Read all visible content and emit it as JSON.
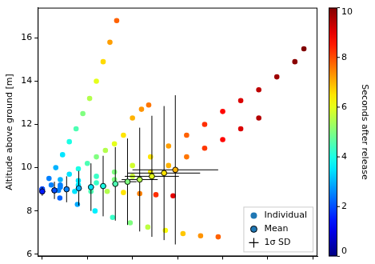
{
  "chart_data": {
    "type": "scatter",
    "y_label": "Altitude above ground [m]",
    "xlim": [
      -0.1,
      6.1
    ],
    "xticks": [
      0,
      1,
      2,
      3,
      4,
      5,
      6
    ],
    "ylim": [
      5.9,
      17.4
    ],
    "yticks": [
      6,
      8,
      10,
      12,
      14,
      16
    ],
    "tick_labels": "y",
    "grid": false,
    "legend": "lower right",
    "series": [
      {
        "name": "Individual",
        "marker": "circle",
        "tracks": [
          {
            "x": [
              0,
              0.15,
              0.3,
              0.45,
              0.6,
              0.75,
              0.9,
              1.05,
              1.2,
              1.35,
              1.5,
              1.65
            ],
            "y": [
              9.0,
              9.5,
              10.0,
              10.6,
              11.2,
              11.8,
              12.5,
              13.2,
              14.0,
              14.9,
              15.8,
              16.8
            ],
            "t": [
              2.0,
              2.5,
              3.0,
              3.5,
              4.0,
              4.5,
              5.0,
              5.5,
              6.0,
              6.6,
              7.2,
              7.8
            ]
          },
          {
            "x": [
              0,
              0.2,
              0.4,
              0.6,
              0.8,
              1.0,
              1.2,
              1.4,
              1.6,
              1.8,
              2.0,
              2.2,
              2.36
            ],
            "y": [
              9.0,
              9.2,
              9.45,
              9.7,
              9.95,
              10.2,
              10.5,
              10.8,
              11.1,
              11.5,
              12.3,
              12.7,
              12.9
            ],
            "t": [
              2.0,
              2.5,
              3.0,
              3.5,
              4.0,
              4.5,
              5.0,
              5.5,
              6.0,
              6.5,
              7.0,
              7.3,
              7.6
            ]
          },
          {
            "x": [
              0,
              0.4,
              0.8,
              1.2,
              1.6,
              2.0,
              2.4,
              2.8,
              3.2,
              3.6,
              4.0,
              4.4,
              4.8,
              5.2,
              5.6,
              5.8
            ],
            "y": [
              9.0,
              9.2,
              9.4,
              9.6,
              9.8,
              10.1,
              10.5,
              11.0,
              11.5,
              12.0,
              12.6,
              13.1,
              13.6,
              14.2,
              14.9,
              15.5
            ],
            "t": [
              1.5,
              2.5,
              3.5,
              4.3,
              5.0,
              5.8,
              6.5,
              7.2,
              7.8,
              8.3,
              8.7,
              9.1,
              9.4,
              9.7,
              9.9,
              10.0
            ]
          },
          {
            "x": [
              0,
              0.4,
              0.8,
              1.2,
              1.6,
              2.0,
              2.4,
              2.8,
              3.2,
              3.6,
              4.0,
              4.4,
              4.8
            ],
            "y": [
              9.0,
              9.1,
              9.2,
              9.3,
              9.45,
              9.6,
              9.8,
              10.1,
              10.5,
              10.9,
              11.3,
              11.8,
              12.3
            ],
            "t": [
              1.5,
              2.5,
              3.5,
              4.3,
              5.0,
              5.7,
              6.4,
              7.0,
              7.6,
              8.2,
              8.7,
              9.1,
              9.5
            ]
          },
          {
            "x": [
              0,
              0.36,
              0.72,
              1.08,
              1.44,
              1.8,
              2.16,
              2.52,
              2.9
            ],
            "y": [
              9.0,
              8.95,
              8.9,
              8.9,
              8.9,
              8.85,
              8.8,
              8.75,
              8.7
            ],
            "t": [
              1.5,
              2.5,
              3.5,
              4.5,
              5.5,
              6.5,
              7.5,
              8.3,
              9.0
            ]
          },
          {
            "x": [
              0,
              0.39,
              0.78,
              1.17,
              1.56,
              1.95,
              2.34,
              2.73,
              3.12,
              3.51,
              3.9
            ],
            "y": [
              8.9,
              8.6,
              8.3,
              8.0,
              7.7,
              7.45,
              7.25,
              7.1,
              6.95,
              6.85,
              6.8
            ],
            "t": [
              1.5,
              2.2,
              2.9,
              3.6,
              4.3,
              5.0,
              5.6,
              6.2,
              6.8,
              7.3,
              7.8
            ]
          }
        ]
      },
      {
        "name": "Mean",
        "marker": "circle",
        "x": [
          0,
          0.27,
          0.54,
          0.81,
          1.08,
          1.35,
          1.62,
          1.89,
          2.16,
          2.43,
          2.7,
          2.95
        ],
        "y": [
          8.9,
          8.95,
          9.0,
          9.05,
          9.1,
          9.15,
          9.25,
          9.35,
          9.45,
          9.6,
          9.75,
          9.9
        ],
        "t": [
          1.5,
          2.0,
          2.5,
          3.0,
          3.5,
          4.0,
          4.5,
          5.0,
          5.5,
          6.0,
          6.5,
          7.0
        ],
        "error_x": [
          0,
          0,
          0,
          0,
          0,
          0,
          0.05,
          0.2,
          0.4,
          0.6,
          0.8,
          0.95
        ],
        "error_y": [
          0.2,
          0.4,
          0.6,
          0.8,
          1.1,
          1.4,
          1.7,
          2.0,
          2.4,
          2.8,
          3.1,
          3.45
        ]
      }
    ],
    "error_name": "1σ SD",
    "colorbar": {
      "label": "Seconds after release",
      "lim": [
        0,
        10
      ],
      "ticks": [
        0,
        2,
        4,
        6,
        8,
        10
      ]
    }
  }
}
